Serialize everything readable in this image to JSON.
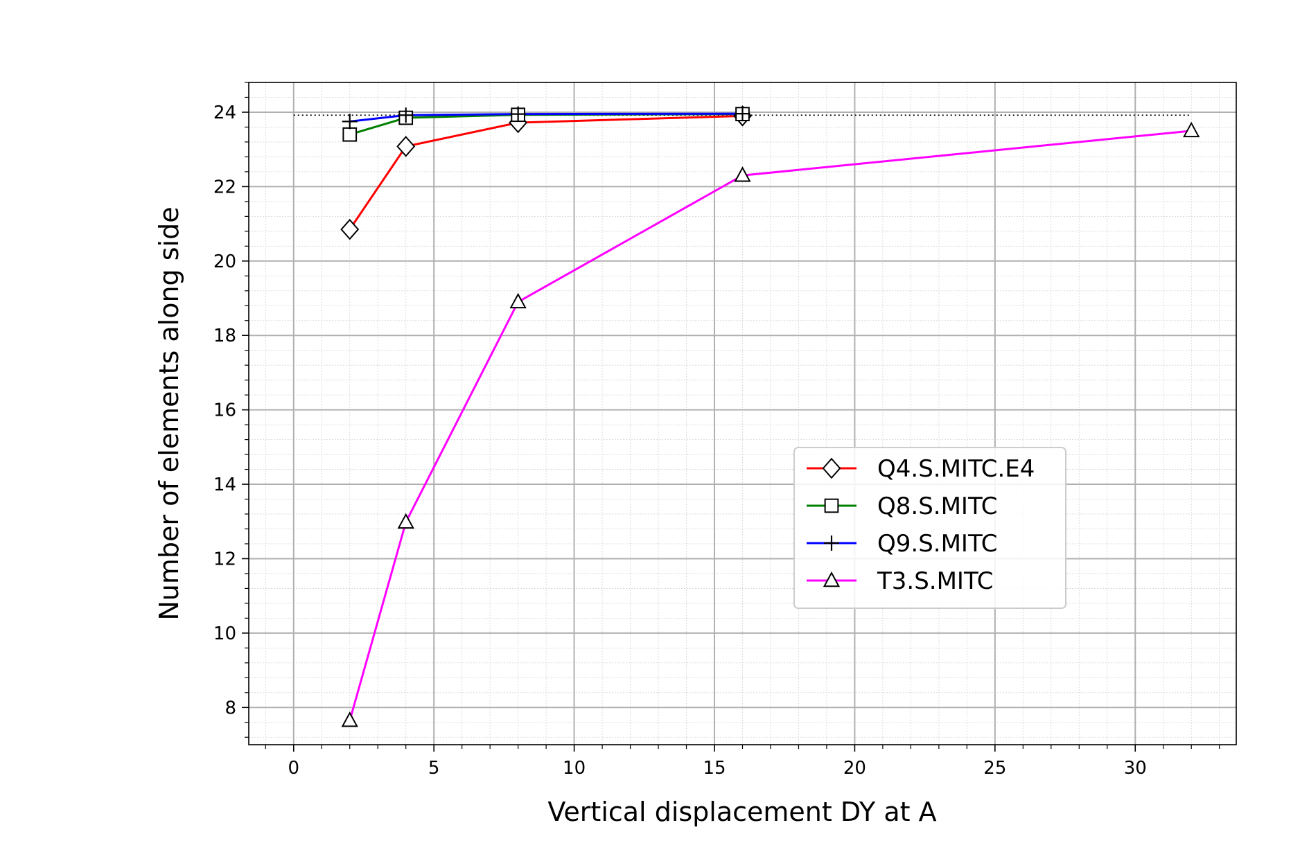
{
  "chart_data": {
    "type": "line",
    "title": "",
    "xlabel": "Vertical displacement DY at A",
    "ylabel": "Number of elements along side",
    "xlim": [
      -1.6,
      33.6
    ],
    "ylim": [
      7.0,
      24.8
    ],
    "xticks": [
      0,
      5,
      10,
      15,
      20,
      25,
      30
    ],
    "xtick_labels": [
      "0",
      "5",
      "10",
      "15",
      "20",
      "25",
      "30"
    ],
    "yticks": [
      8,
      10,
      12,
      14,
      16,
      18,
      20,
      22,
      24
    ],
    "ytick_labels": [
      "8",
      "10",
      "12",
      "14",
      "16",
      "18",
      "20",
      "22",
      "24"
    ],
    "grid": true,
    "minor_grid": true,
    "legend_position": "center-right",
    "reference_line": {
      "y": 23.92,
      "x_range": [
        0,
        32
      ],
      "style": "dotted",
      "color": "#000000"
    },
    "series": [
      {
        "name": "Q4.S.MITC.E4",
        "color": "#ff0000",
        "marker": "diamond",
        "x": [
          2,
          4,
          8,
          16
        ],
        "y": [
          20.85,
          23.08,
          23.72,
          23.9
        ]
      },
      {
        "name": "Q8.S.MITC",
        "color": "#008000",
        "marker": "square",
        "x": [
          2,
          4,
          8,
          16
        ],
        "y": [
          23.4,
          23.85,
          23.93,
          23.95
        ]
      },
      {
        "name": "Q9.S.MITC",
        "color": "#0000ff",
        "marker": "plus",
        "x": [
          2,
          4,
          8,
          16
        ],
        "y": [
          23.75,
          23.92,
          23.95,
          23.96
        ]
      },
      {
        "name": "T3.S.MITC",
        "color": "#ff00ff",
        "marker": "triangle",
        "x": [
          2,
          4,
          8,
          16,
          32
        ],
        "y": [
          7.65,
          12.98,
          18.9,
          22.3,
          23.5
        ]
      }
    ]
  }
}
